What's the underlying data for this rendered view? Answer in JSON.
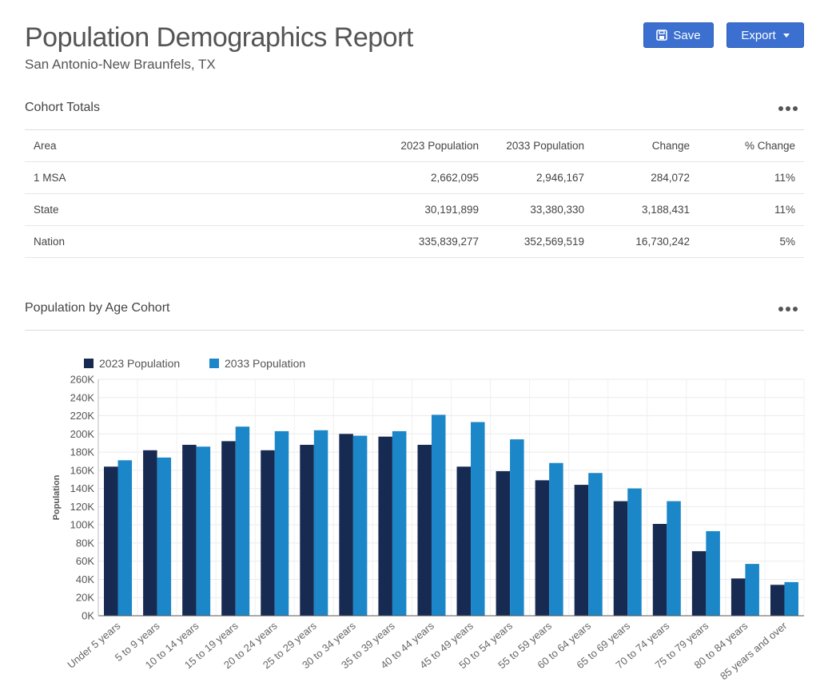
{
  "header": {
    "title": "Population Demographics Report",
    "subtitle": "San Antonio-New Braunfels, TX",
    "save_label": "Save",
    "export_label": "Export"
  },
  "cohort_totals": {
    "section_title": "Cohort Totals",
    "columns": [
      "Area",
      "2023 Population",
      "2033 Population",
      "Change",
      "% Change"
    ],
    "rows": [
      [
        "1 MSA",
        "2,662,095",
        "2,946,167",
        "284,072",
        "11%"
      ],
      [
        "State",
        "30,191,899",
        "33,380,330",
        "3,188,431",
        "11%"
      ],
      [
        "Nation",
        "335,839,277",
        "352,569,519",
        "16,730,242",
        "5%"
      ]
    ]
  },
  "age_chart": {
    "section_title": "Population by Age Cohort"
  },
  "colors": {
    "primary_button": "#3b6fd0",
    "series_2023": "#172a52",
    "series_2033": "#1b86c8"
  },
  "chart_data": {
    "type": "bar",
    "title": "",
    "xlabel": "",
    "ylabel": "Population",
    "ylim": [
      0,
      260000
    ],
    "yticks": [
      "0K",
      "20K",
      "40K",
      "60K",
      "80K",
      "100K",
      "120K",
      "140K",
      "160K",
      "180K",
      "200K",
      "220K",
      "240K",
      "260K"
    ],
    "grid": true,
    "legend": "top-left",
    "categories": [
      "Under 5 years",
      "5 to 9 years",
      "10 to 14 years",
      "15 to 19 years",
      "20 to 24 years",
      "25 to 29 years",
      "30 to 34 years",
      "35 to 39 years",
      "40 to 44 years",
      "45 to 49 years",
      "50 to 54 years",
      "55 to 59 years",
      "60 to 64 years",
      "65 to 69 years",
      "70 to 74 years",
      "75 to 79 years",
      "80 to 84 years",
      "85 years and over"
    ],
    "series": [
      {
        "name": "2023 Population",
        "values": [
          164000,
          182000,
          188000,
          192000,
          182000,
          188000,
          200000,
          197000,
          188000,
          164000,
          159000,
          149000,
          144000,
          126000,
          101000,
          71000,
          41000,
          34000
        ]
      },
      {
        "name": "2033 Population",
        "values": [
          171000,
          174000,
          186000,
          208000,
          203000,
          204000,
          198000,
          203000,
          221000,
          213000,
          194000,
          168000,
          157000,
          140000,
          126000,
          93000,
          57000,
          37000
        ]
      }
    ]
  }
}
